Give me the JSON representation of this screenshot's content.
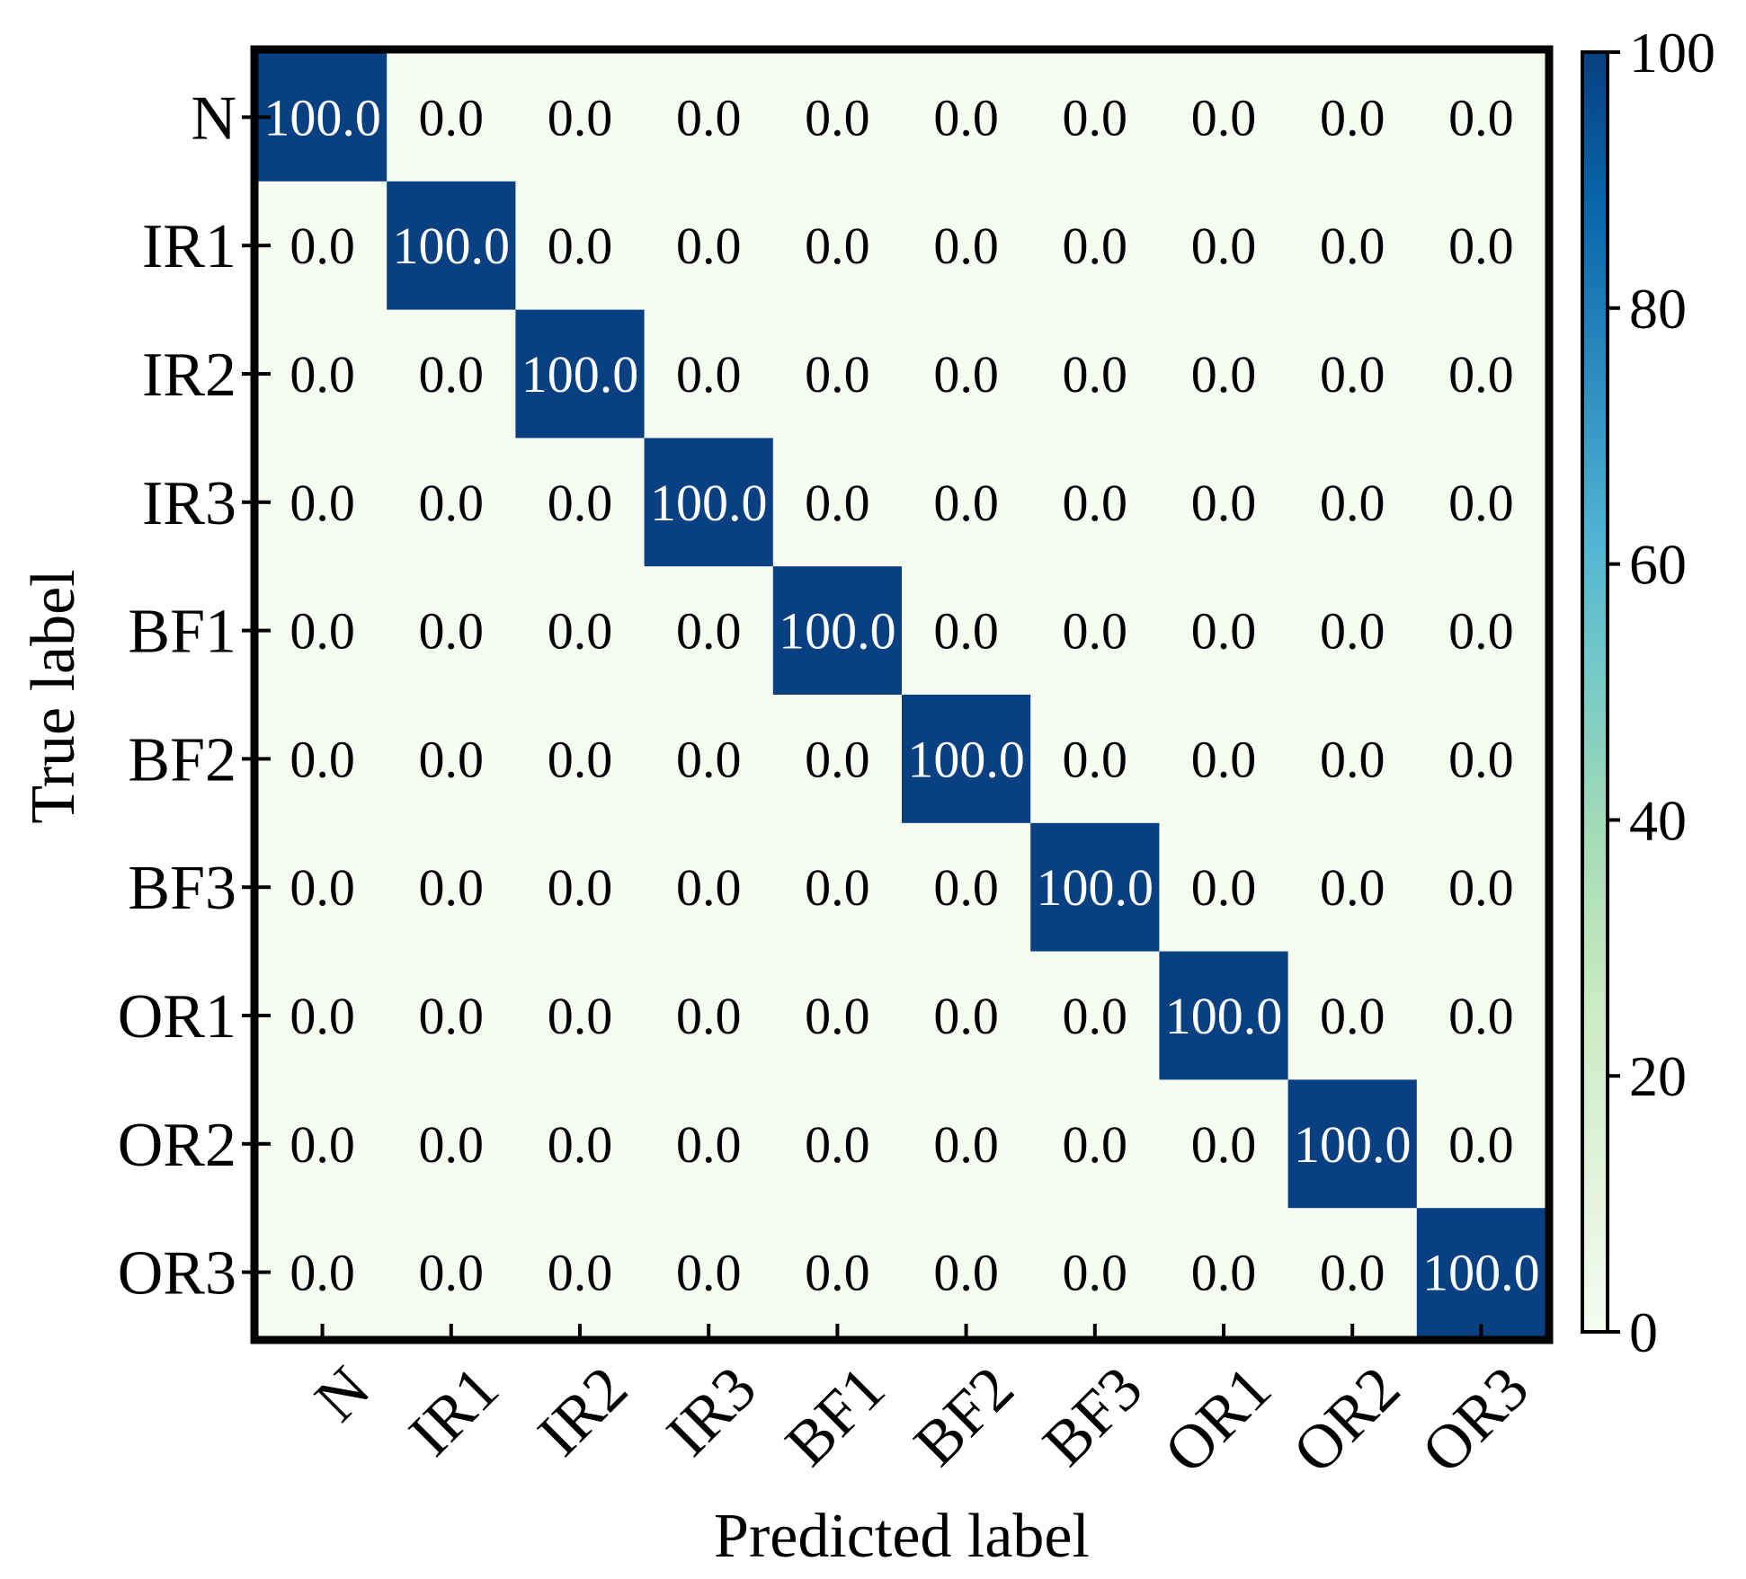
{
  "chart_data": {
    "type": "heatmap",
    "title": "",
    "xlabel": "Predicted label",
    "ylabel": "True label",
    "x_categories": [
      "N",
      "IR1",
      "IR2",
      "IR3",
      "BF1",
      "BF2",
      "BF3",
      "OR1",
      "OR2",
      "OR3"
    ],
    "y_categories": [
      "N",
      "IR1",
      "IR2",
      "IR3",
      "BF1",
      "BF2",
      "BF3",
      "OR1",
      "OR2",
      "OR3"
    ],
    "values": [
      [
        100.0,
        0.0,
        0.0,
        0.0,
        0.0,
        0.0,
        0.0,
        0.0,
        0.0,
        0.0
      ],
      [
        0.0,
        100.0,
        0.0,
        0.0,
        0.0,
        0.0,
        0.0,
        0.0,
        0.0,
        0.0
      ],
      [
        0.0,
        0.0,
        100.0,
        0.0,
        0.0,
        0.0,
        0.0,
        0.0,
        0.0,
        0.0
      ],
      [
        0.0,
        0.0,
        0.0,
        100.0,
        0.0,
        0.0,
        0.0,
        0.0,
        0.0,
        0.0
      ],
      [
        0.0,
        0.0,
        0.0,
        0.0,
        100.0,
        0.0,
        0.0,
        0.0,
        0.0,
        0.0
      ],
      [
        0.0,
        0.0,
        0.0,
        0.0,
        0.0,
        100.0,
        0.0,
        0.0,
        0.0,
        0.0
      ],
      [
        0.0,
        0.0,
        0.0,
        0.0,
        0.0,
        0.0,
        100.0,
        0.0,
        0.0,
        0.0
      ],
      [
        0.0,
        0.0,
        0.0,
        0.0,
        0.0,
        0.0,
        0.0,
        100.0,
        0.0,
        0.0
      ],
      [
        0.0,
        0.0,
        0.0,
        0.0,
        0.0,
        0.0,
        0.0,
        0.0,
        100.0,
        0.0
      ],
      [
        0.0,
        0.0,
        0.0,
        0.0,
        0.0,
        0.0,
        0.0,
        0.0,
        0.0,
        100.0
      ]
    ],
    "colorbar": {
      "range": [
        0,
        100
      ],
      "ticks": [
        0,
        20,
        40,
        60,
        80,
        100
      ],
      "colormap": "GnBu",
      "stops": [
        "#f7fcf0",
        "#e0f3db",
        "#ccebc5",
        "#a8ddb5",
        "#7bccc4",
        "#4eb3d3",
        "#2b8cbe",
        "#0868ac",
        "#084081"
      ]
    },
    "text_colors": {
      "dark_cell": "#ffffff",
      "light_cell": "#000000"
    }
  }
}
